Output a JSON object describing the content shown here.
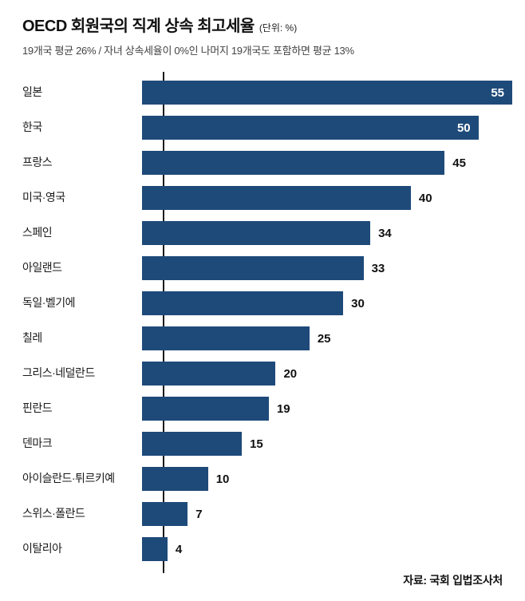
{
  "header": {
    "title": "OECD 회원국의 직계 상속 최고세율",
    "unit": "(단위: %)",
    "subtitle": "19개국 평균 26% / 자녀 상속세율이 0%인 나머지 19개국도 포함하면 평균 13%"
  },
  "footer": {
    "source": "자료: 국회 입법조사처"
  },
  "chart_data": {
    "type": "bar",
    "orientation": "horizontal",
    "title": "OECD 회원국의 직계 상속 최고세율 (단위: %)",
    "subtitle": "19개국 평균 26% / 자녀 상속세율이 0%인 나머지 19개국도 포함하면 평균 13%",
    "categories": [
      "일본",
      "한국",
      "프랑스",
      "미국·영국",
      "스페인",
      "아일랜드",
      "독일·벨기에",
      "칠레",
      "그리스·네덜란드",
      "핀란드",
      "덴마크",
      "아이슬란드·튀르키예",
      "스위스·폴란드",
      "이탈리아"
    ],
    "values": [
      55,
      50,
      45,
      40,
      34,
      33,
      30,
      25,
      20,
      19,
      15,
      10,
      7,
      4
    ],
    "xlabel": "",
    "ylabel": "",
    "xlim": [
      0,
      55
    ],
    "grid": false,
    "legend": false,
    "bar_color": "#1e4a7a",
    "inside_label_min_value": 50,
    "inside_label_color": "#ffffff",
    "outside_label_color": "#111111",
    "source": "자료: 국회 입법조사처"
  }
}
